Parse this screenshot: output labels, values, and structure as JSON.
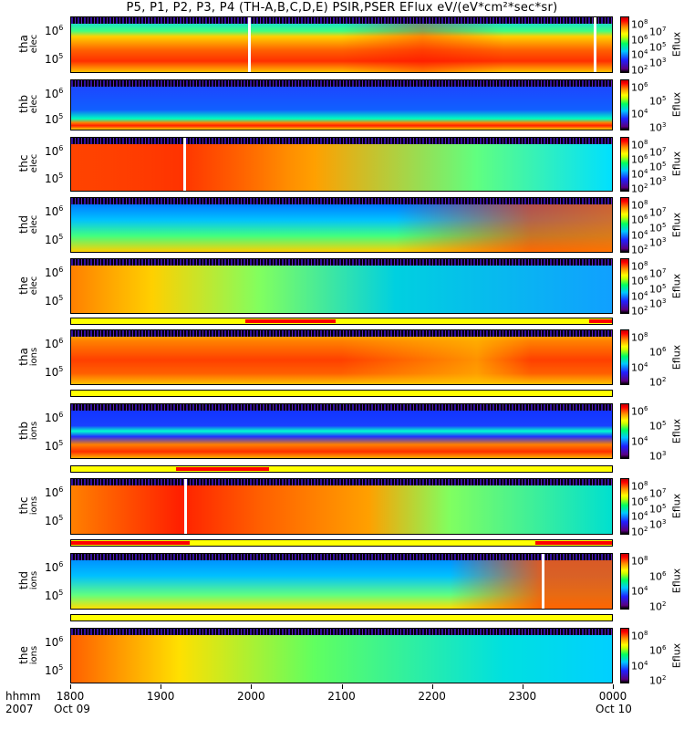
{
  "title": "P5, P1, P2, P3, P4 (TH-A,B,C,D,E) PSIR,PSER EFlux eV/(eV*cm²*sec*sr)",
  "colorbar_label": "Eflux",
  "chart_data": {
    "type": "heatmap",
    "title": "P5, P1, P2, P3, P4 (TH-A,B,C,D,E) PSIR,PSER EFlux eV/(eV*cm2*sec*sr)",
    "xlabel": "hhmm 2007",
    "x_range_minutes_from_1800": [
      0,
      360
    ],
    "x_ticks": [
      "1800",
      "1900",
      "2000",
      "2100",
      "2200",
      "2300",
      "0000"
    ],
    "x_date_labels": {
      "start": "Oct 09",
      "end": "Oct 10"
    },
    "x_corner": [
      "hhmm",
      "2007"
    ],
    "panels": [
      {
        "name": "tha",
        "sub": "elec",
        "yticks": [
          "10",
          "10"
        ],
        "yexp": [
          "6",
          "5"
        ],
        "cticks": [
          "8",
          "7",
          "6",
          "5",
          "4",
          "3",
          "2"
        ]
      },
      {
        "name": "thb",
        "sub": "elec",
        "yticks": [
          "10",
          "10"
        ],
        "yexp": [
          "6",
          "5"
        ],
        "cticks": [
          "6",
          "5",
          "4",
          "3"
        ]
      },
      {
        "name": "thc",
        "sub": "elec",
        "yticks": [
          "10",
          "10"
        ],
        "yexp": [
          "6",
          "5"
        ],
        "cticks": [
          "8",
          "7",
          "6",
          "5",
          "4",
          "3",
          "2"
        ]
      },
      {
        "name": "thd",
        "sub": "elec",
        "yticks": [
          "10",
          "10"
        ],
        "yexp": [
          "6",
          "5"
        ],
        "cticks": [
          "8",
          "7",
          "6",
          "5",
          "4",
          "3",
          "2"
        ]
      },
      {
        "name": "the",
        "sub": "elec",
        "yticks": [
          "10",
          "10"
        ],
        "yexp": [
          "6",
          "5"
        ],
        "cticks": [
          "8",
          "7",
          "6",
          "5",
          "4",
          "3",
          "2"
        ]
      },
      {
        "name": "tha",
        "sub": "ions",
        "yticks": [
          "10",
          "10"
        ],
        "yexp": [
          "6",
          "5"
        ],
        "cticks": [
          "8",
          "6",
          "4",
          "2"
        ]
      },
      {
        "name": "thb",
        "sub": "ions",
        "yticks": [
          "10",
          "10"
        ],
        "yexp": [
          "6",
          "5"
        ],
        "cticks": [
          "6",
          "5",
          "4",
          "3"
        ]
      },
      {
        "name": "thc",
        "sub": "ions",
        "yticks": [
          "10",
          "10"
        ],
        "yexp": [
          "6",
          "5"
        ],
        "cticks": [
          "8",
          "7",
          "6",
          "5",
          "4",
          "3",
          "2"
        ]
      },
      {
        "name": "thd",
        "sub": "ions",
        "yticks": [
          "10",
          "10"
        ],
        "yexp": [
          "6",
          "5"
        ],
        "cticks": [
          "8",
          "6",
          "4",
          "2"
        ]
      },
      {
        "name": "the",
        "sub": "ions",
        "yticks": [
          "10",
          "10"
        ],
        "yexp": [
          "6",
          "5"
        ],
        "cticks": [
          "8",
          "6",
          "4",
          "2"
        ]
      }
    ],
    "mode_bars": [
      {
        "red_segments_minutes": [
          [
            116,
            176
          ],
          [
            345,
            360
          ]
        ]
      },
      {
        "red_segments_minutes": []
      },
      {
        "red_segments_minutes": [
          [
            70,
            132
          ]
        ]
      },
      {
        "red_segments_minutes": [
          [
            0,
            79
          ],
          [
            309,
            360
          ]
        ]
      },
      {
        "red_segments_minutes": []
      }
    ]
  }
}
